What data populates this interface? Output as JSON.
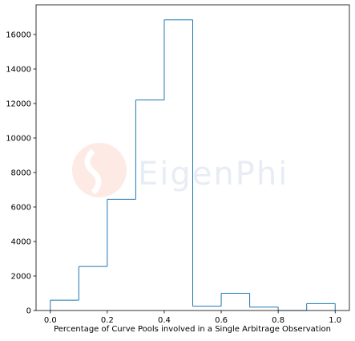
{
  "chart_data": {
    "type": "histogram",
    "x_label": "Percentage of Curve Pools involved in a Single Arbitrage Observation",
    "watermark": "EigenPhi",
    "bins": [
      0,
      0.1,
      0.2,
      0.3,
      0.4,
      0.5,
      0.6,
      0.7,
      0.8,
      0.9,
      1.0
    ],
    "values": [
      600,
      2550,
      6450,
      12200,
      16850,
      250,
      1000,
      200,
      0,
      400
    ],
    "color": "#1f77b4",
    "xlim": [
      -0.05,
      1.05
    ],
    "ylim": [
      0,
      17720
    ],
    "xticks": [
      {
        "value": 0,
        "label": "0.0"
      },
      0.2,
      0.4,
      0.6,
      0.8,
      {
        "value": 1,
        "label": "1.0"
      }
    ],
    "yticks": [
      0,
      2000,
      4000,
      6000,
      8000,
      10000,
      12000,
      14000,
      16000
    ]
  }
}
